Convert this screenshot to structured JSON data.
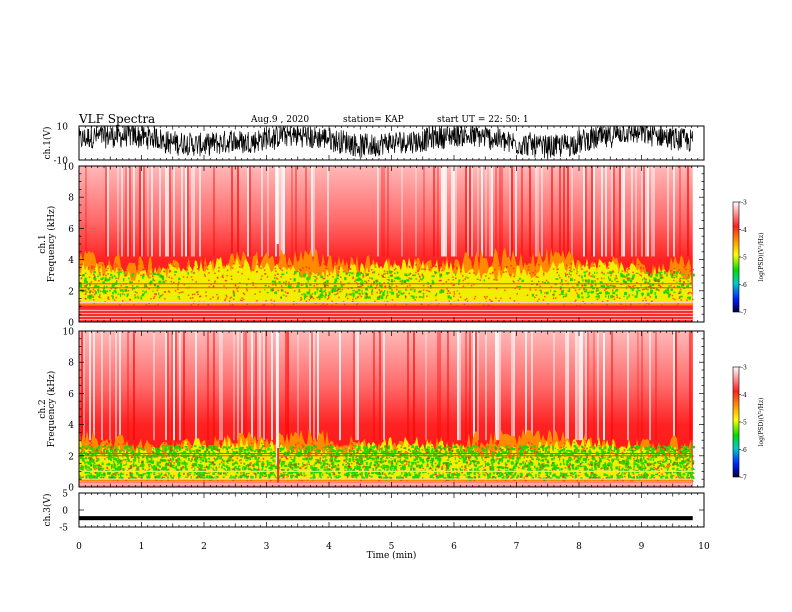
{
  "header": {
    "title": "VLF Spectra",
    "date": "Aug.9 , 2020",
    "station": "station= KAP",
    "start_time": "start UT = 22: 50: 1"
  },
  "colors": {
    "red": "#ff1a1a",
    "orange": "#ff8a00",
    "yellow": "#f2ee00",
    "green": "#22d600",
    "colorbar_stops": [
      "#ffffff",
      "#ff0000",
      "#ff9900",
      "#ffff00",
      "#00dd00",
      "#00cccc",
      "#0033ff",
      "#000055"
    ]
  },
  "chart_data": [
    {
      "type": "line",
      "panel": "ch1-waveform",
      "ylabel": "ch.1(V)",
      "ylim": [
        -10,
        10
      ],
      "y_ticks": [
        "10",
        "-10"
      ],
      "x_range_min": [
        0,
        9.82
      ],
      "signal": "noise waveform oscillating roughly between -7 and +10 V"
    },
    {
      "type": "heatmap",
      "panel": "ch1-spectrogram",
      "ylabel": "ch.1\nFrequency (kHz)",
      "ylim": [
        0,
        10
      ],
      "y_ticks": [
        "0",
        "2",
        "4",
        "6",
        "8",
        "10"
      ],
      "bands_khz": [
        {
          "from": 1.0,
          "to": 4.0,
          "level": "yellow"
        },
        {
          "from": 1.5,
          "to": 3.4,
          "level": "green-spots"
        },
        {
          "from": 0.3,
          "to": 6.0,
          "level": "red"
        }
      ],
      "lines_khz": [
        2.2,
        2.45,
        1.25,
        0.2
      ],
      "colorbar": {
        "label": "log(PSD)(V²/Hz)",
        "ticks": [
          "-3",
          "-4",
          "-5",
          "-6",
          "-7"
        ],
        "range": [
          -7,
          -3
        ]
      }
    },
    {
      "type": "heatmap",
      "panel": "ch2-spectrogram",
      "ylabel": "ch.2\nFrequency (kHz)",
      "ylim": [
        0,
        10
      ],
      "y_ticks": [
        "0",
        "2",
        "4",
        "6",
        "8",
        "10"
      ],
      "bands_khz": [
        {
          "from": 0.3,
          "to": 3.0,
          "level": "yellow"
        },
        {
          "from": 0.5,
          "to": 2.7,
          "level": "green"
        },
        {
          "from": 0.0,
          "to": 6.0,
          "level": "red"
        }
      ],
      "lines_khz": [
        2.0,
        2.15,
        1.0,
        0.5
      ],
      "colorbar": {
        "label": "log(PSD)(V²/Hz)",
        "ticks": [
          "-3",
          "-4",
          "-5",
          "-6",
          "-7"
        ],
        "range": [
          -7,
          -3
        ]
      }
    },
    {
      "type": "line",
      "panel": "ch3-waveform",
      "ylabel": "ch.3(V)",
      "ylim": [
        -5,
        5
      ],
      "y_ticks": [
        "5",
        "0",
        "-5"
      ],
      "x_range_min": [
        0,
        9.82
      ],
      "signal": "narrow band near -2 to -3 V"
    }
  ],
  "x_axis": {
    "label": "Time (min)",
    "ticks": [
      "0",
      "1",
      "2",
      "3",
      "4",
      "5",
      "6",
      "7",
      "8",
      "9",
      "10"
    ],
    "range": [
      0,
      10
    ]
  }
}
